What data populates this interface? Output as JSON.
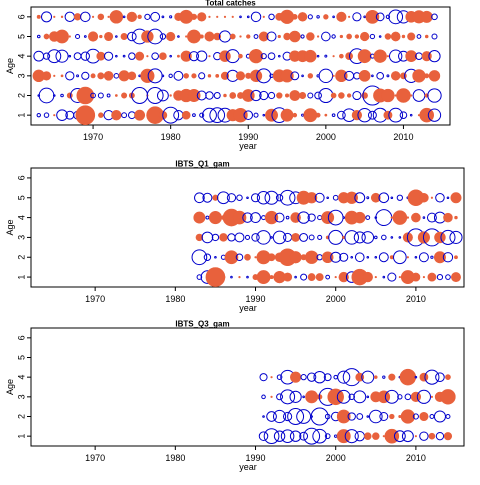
{
  "chart_data": [
    {
      "type": "scatter",
      "subtype": "bubble-residuals",
      "title": "Total catches",
      "xlabel": "year",
      "ylabel": "Age",
      "xlim": [
        1962,
        2016
      ],
      "ylim": [
        0.5,
        6.5
      ],
      "x_ticks": [
        1970,
        1980,
        1990,
        2000,
        2010
      ],
      "y_ticks": [
        1,
        2,
        3,
        4,
        5,
        6
      ],
      "year_range": [
        1963,
        2014
      ],
      "ages": [
        1,
        2,
        3,
        4,
        5,
        6
      ],
      "legend": "none",
      "grid": false,
      "positive_color": "#E8613C",
      "negative_color": "#0000CC",
      "seed": 11,
      "emphasis": [
        {
          "year": 1969,
          "age": 1,
          "value": 1.0
        },
        {
          "year": 1978,
          "age": 1,
          "value": 0.8
        },
        {
          "year": 1980,
          "age": 1,
          "value": -0.7
        },
        {
          "year": 1964,
          "age": 2,
          "value": -0.6
        },
        {
          "year": 1969,
          "age": 2,
          "value": 0.8
        },
        {
          "year": 1976,
          "age": 2,
          "value": -0.7
        },
        {
          "year": 1978,
          "age": 2,
          "value": -0.7
        },
        {
          "year": 2006,
          "age": 2,
          "value": -1.0
        },
        {
          "year": 1994,
          "age": 1,
          "value": -0.6
        },
        {
          "year": 1986,
          "age": 1,
          "value": -0.6
        },
        {
          "year": 1976,
          "age": 5,
          "value": -0.6
        },
        {
          "year": 1978,
          "age": 5,
          "value": -0.6
        },
        {
          "year": 2004,
          "age": 4,
          "value": -0.6
        },
        {
          "year": 2000,
          "age": 3,
          "value": -0.5
        }
      ]
    },
    {
      "type": "scatter",
      "subtype": "bubble-residuals",
      "title": "IBTS_Q1_gam",
      "xlabel": "year",
      "ylabel": "Age",
      "xlim": [
        1962,
        2016
      ],
      "ylim": [
        0.5,
        6.5
      ],
      "x_ticks": [
        1970,
        1980,
        1990,
        2000,
        2010
      ],
      "y_ticks": [
        1,
        2,
        3,
        4,
        5,
        6
      ],
      "year_range": [
        1983,
        2015
      ],
      "ages": [
        1,
        2,
        3,
        4,
        5
      ],
      "legend": "none",
      "grid": false,
      "positive_color": "#E8613C",
      "negative_color": "#0000CC",
      "seed": 23,
      "emphasis": [
        {
          "year": 1985,
          "age": 1,
          "value": 1.0
        },
        {
          "year": 1987,
          "age": 4,
          "value": 0.8
        },
        {
          "year": 1994,
          "age": 2,
          "value": 0.8
        },
        {
          "year": 2010,
          "age": 3,
          "value": -0.8
        },
        {
          "year": 2012,
          "age": 3,
          "value": -0.8
        },
        {
          "year": 2006,
          "age": 4,
          "value": -0.7
        },
        {
          "year": 2010,
          "age": 5,
          "value": 0.7
        },
        {
          "year": 1983,
          "age": 2,
          "value": -0.6
        },
        {
          "year": 1994,
          "age": 5,
          "value": -0.6
        },
        {
          "year": 2000,
          "age": 4,
          "value": -0.6
        },
        {
          "year": 2003,
          "age": 1,
          "value": 0.7
        }
      ]
    },
    {
      "type": "scatter",
      "subtype": "bubble-residuals",
      "title": "IBTS_Q3_gam",
      "xlabel": "year",
      "ylabel": "Age",
      "xlim": [
        1962,
        2016
      ],
      "ylim": [
        0.5,
        6.5
      ],
      "x_ticks": [
        1970,
        1980,
        1990,
        2000,
        2010
      ],
      "y_ticks": [
        1,
        2,
        3,
        4,
        5,
        6
      ],
      "year_range": [
        1991,
        2014
      ],
      "ages": [
        1,
        2,
        3,
        4
      ],
      "legend": "none",
      "grid": false,
      "positive_color": "#E8613C",
      "negative_color": "#0000CC",
      "seed": 37,
      "emphasis": [
        {
          "year": 2002,
          "age": 4,
          "value": -0.8
        },
        {
          "year": 1999,
          "age": 3,
          "value": -0.8
        },
        {
          "year": 2000,
          "age": 3,
          "value": 0.7
        },
        {
          "year": 1998,
          "age": 2,
          "value": -0.8
        },
        {
          "year": 1995,
          "age": 2,
          "value": -0.7
        },
        {
          "year": 1997,
          "age": 1,
          "value": -0.7
        },
        {
          "year": 2009,
          "age": 4,
          "value": 0.7
        },
        {
          "year": 2014,
          "age": 3,
          "value": 0.6
        },
        {
          "year": 1992,
          "age": 1,
          "value": -0.6
        }
      ]
    }
  ]
}
